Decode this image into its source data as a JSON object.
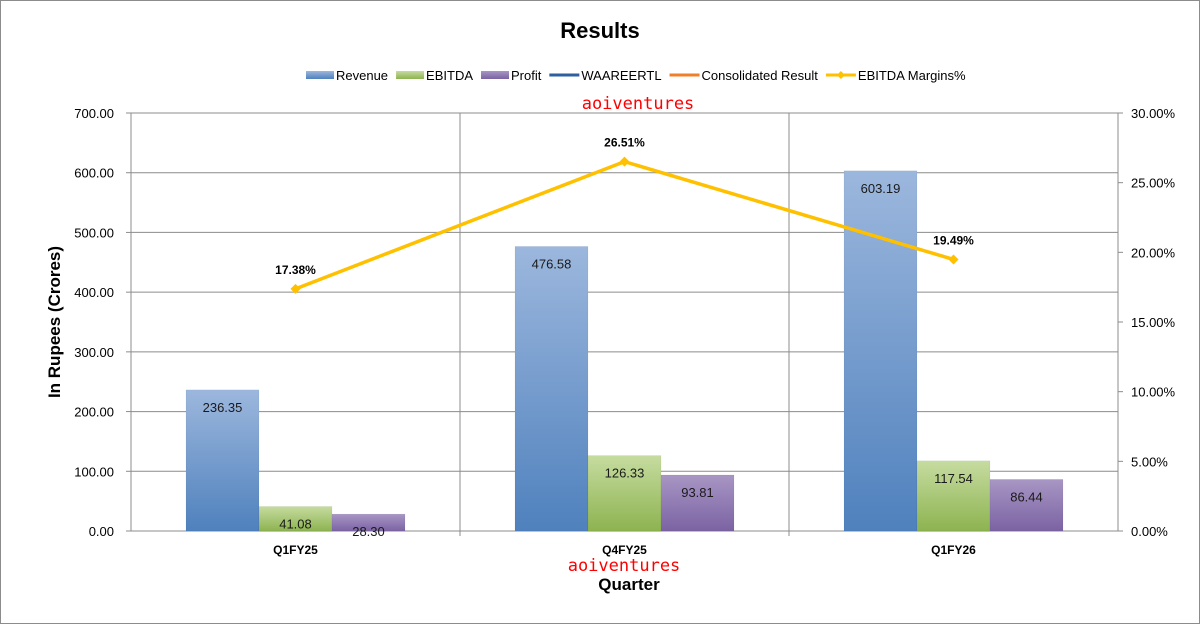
{
  "chart_data": {
    "type": "bar",
    "title": "Results",
    "xlabel": "Quarter",
    "ylabel": "In Rupees (Crores)",
    "categories": [
      "Q1FY25",
      "Q4FY25",
      "Q1FY26"
    ],
    "ylim": [
      0,
      700
    ],
    "y_ticks": [
      "0.00",
      "100.00",
      "200.00",
      "300.00",
      "400.00",
      "500.00",
      "600.00",
      "700.00"
    ],
    "y2lim": [
      0,
      30
    ],
    "y2_ticks": [
      "0.00%",
      "5.00%",
      "10.00%",
      "15.00%",
      "20.00%",
      "25.00%",
      "30.00%"
    ],
    "grid": true,
    "legend_position": "top",
    "series": [
      {
        "name": "Revenue",
        "values": [
          236.35,
          476.58,
          603.19
        ],
        "labels": [
          "236.35",
          "476.58",
          "603.19"
        ],
        "color": "#4f81bd"
      },
      {
        "name": "EBITDA",
        "values": [
          41.08,
          126.33,
          117.54
        ],
        "labels": [
          "41.08",
          "126.33",
          "117.54"
        ],
        "color": "#9bbb59"
      },
      {
        "name": "Profit",
        "values": [
          28.3,
          93.81,
          86.44
        ],
        "labels": [
          "28.30",
          "93.81",
          "86.44"
        ],
        "color": "#8064a2"
      }
    ],
    "extra_legend": [
      {
        "name": "WAAREERTL",
        "color": "#2e5f9e"
      },
      {
        "name": "Consolidated Result",
        "color": "#f07f2a"
      }
    ],
    "margin_series": {
      "name": "EBITDA Margins%",
      "values": [
        17.38,
        26.51,
        19.49
      ],
      "labels": [
        "17.38%",
        "26.51%",
        "19.49%"
      ],
      "color": "#ffc000"
    },
    "watermarks": [
      "aoiventures",
      "aoiventures"
    ]
  }
}
